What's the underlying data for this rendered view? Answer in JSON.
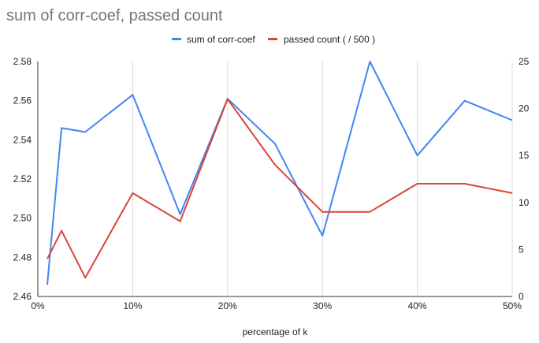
{
  "chart_data": {
    "type": "line",
    "title": "sum of corr-coef, passed count",
    "xlabel": "percentage of k",
    "ylabel": "",
    "ylabel_right": "",
    "x": [
      1,
      2.5,
      5,
      10,
      15,
      20,
      25,
      30,
      35,
      40,
      45,
      50
    ],
    "x_ticks": [
      0,
      10,
      20,
      30,
      40,
      50
    ],
    "x_tick_labels": [
      "0%",
      "10%",
      "20%",
      "30%",
      "40%",
      "50%"
    ],
    "xlim": [
      0,
      50
    ],
    "ylim_left": [
      2.46,
      2.58
    ],
    "y_left_ticks": [
      2.46,
      2.48,
      2.5,
      2.52,
      2.54,
      2.56,
      2.58
    ],
    "y_left_tick_labels": [
      "2.46",
      "2.48",
      "2.50",
      "2.52",
      "2.54",
      "2.56",
      "2.58"
    ],
    "ylim_right": [
      0,
      25
    ],
    "y_right_ticks": [
      0,
      5,
      10,
      15,
      20,
      25
    ],
    "y_right_tick_labels": [
      "0",
      "5",
      "10",
      "15",
      "20",
      "25"
    ],
    "grid": "vertical",
    "legend_position": "top",
    "series": [
      {
        "name": "sum of corr-coef",
        "axis": "left",
        "color": "#4285f4",
        "values": [
          2.466,
          2.546,
          2.544,
          2.563,
          2.502,
          2.561,
          2.538,
          2.491,
          2.58,
          2.532,
          2.56,
          2.55
        ]
      },
      {
        "name": "passed count ( / 500 )",
        "axis": "right",
        "color": "#db4437",
        "values": [
          4,
          7,
          2,
          11,
          8,
          21,
          14,
          9,
          9,
          12,
          12,
          11
        ]
      }
    ]
  }
}
